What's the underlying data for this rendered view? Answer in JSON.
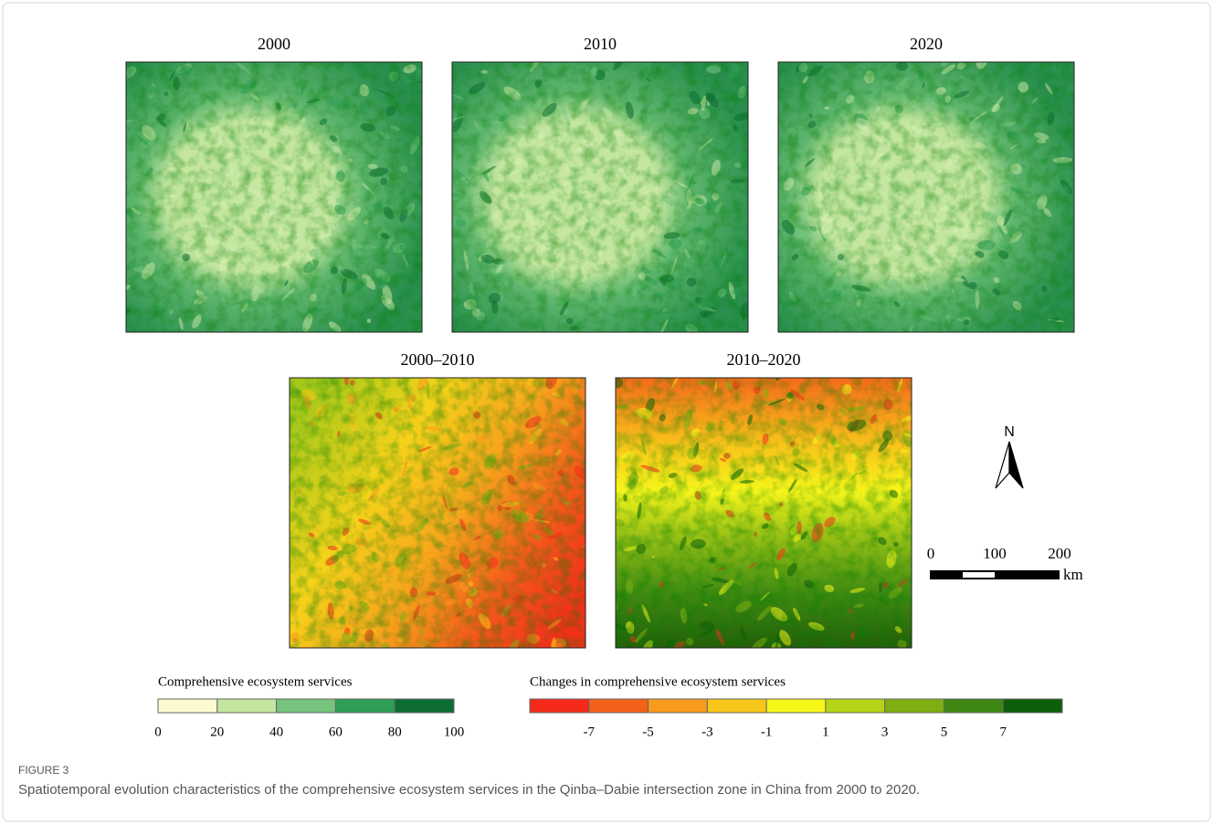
{
  "panels": [
    {
      "title": "2000"
    },
    {
      "title": "2010"
    },
    {
      "title": "2020"
    },
    {
      "title": "2000–2010"
    },
    {
      "title": "2010–2020"
    }
  ],
  "north_arrow": {
    "label": "N"
  },
  "scale_bar": {
    "labels": [
      "0",
      "100",
      "200"
    ],
    "unit": "km"
  },
  "legend_services": {
    "title": "Comprehensive ecosystem services",
    "colors": [
      "#fcfbd0",
      "#c4e6a0",
      "#76c47e",
      "#2f9e57",
      "#0d6e34"
    ],
    "labels": [
      "0",
      "20",
      "40",
      "60",
      "80",
      "100"
    ]
  },
  "legend_changes": {
    "title": "Changes in comprehensive ecosystem services",
    "colors": [
      "#f52a1a",
      "#f4621a",
      "#f89b1c",
      "#f9c71a",
      "#f8f71a",
      "#b5d417",
      "#7fae12",
      "#3e8712",
      "#0d5e0a"
    ],
    "labels": [
      "-7",
      "-5",
      "-3",
      "-1",
      "1",
      "3",
      "5",
      "7"
    ]
  },
  "caption": {
    "label": "FIGURE 3",
    "text": "Spatiotemporal evolution characteristics of the comprehensive ecosystem services in the Qinba–Dabie intersection zone in China from 2000 to 2020."
  }
}
